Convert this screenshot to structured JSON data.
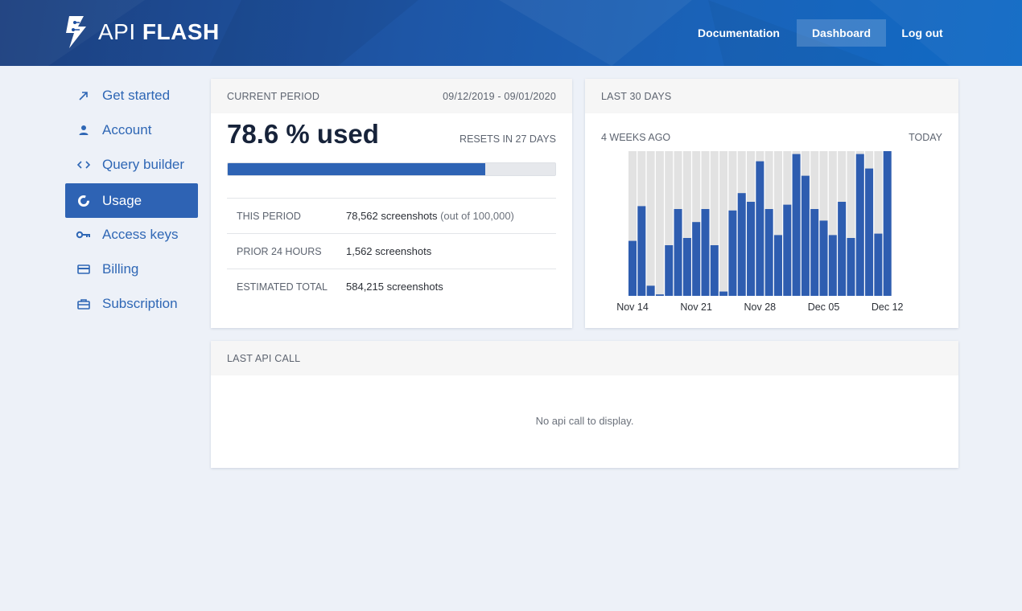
{
  "header": {
    "logo_light": "API",
    "logo_bold": "FLASH",
    "nav": [
      {
        "label": "Documentation"
      },
      {
        "label": "Dashboard"
      },
      {
        "label": "Log out"
      }
    ]
  },
  "sidebar": {
    "items": [
      {
        "label": "Get started",
        "icon": "arrow-up-right-icon"
      },
      {
        "label": "Account",
        "icon": "user-icon"
      },
      {
        "label": "Query builder",
        "icon": "code-icon"
      },
      {
        "label": "Usage",
        "icon": "donut-chart-icon",
        "active": true
      },
      {
        "label": "Access keys",
        "icon": "key-icon"
      },
      {
        "label": "Billing",
        "icon": "credit-card-icon"
      },
      {
        "label": "Subscription",
        "icon": "briefcase-icon"
      }
    ]
  },
  "current_period": {
    "title": "CURRENT PERIOD",
    "range": "09/12/2019 - 09/01/2020",
    "used_text": "78.6 % used",
    "used_fraction": 0.786,
    "resets": "RESETS IN 27 DAYS",
    "rows": [
      {
        "label": "THIS PERIOD",
        "value": "78,562 screenshots",
        "note": "(out of 100,000)"
      },
      {
        "label": "PRIOR 24 HOURS",
        "value": "1,562 screenshots",
        "note": ""
      },
      {
        "label": "ESTIMATED TOTAL",
        "value": "584,215 screenshots",
        "note": ""
      }
    ]
  },
  "last30": {
    "title": "LAST 30 DAYS",
    "left_caption": "4 WEEKS AGO",
    "right_caption": "TODAY"
  },
  "chart_data": {
    "type": "bar",
    "bar_color": "#2e5db0",
    "track_color": "#e2e2e2",
    "x_tick_labels": [
      "Nov 14",
      "Nov 21",
      "Nov 28",
      "Dec 05",
      "Dec 12"
    ],
    "values": [
      38,
      62,
      7,
      1,
      35,
      60,
      40,
      51,
      60,
      35,
      3,
      59,
      71,
      65,
      93,
      60,
      42,
      63,
      98,
      83,
      60,
      52,
      42,
      65,
      40,
      98,
      88,
      43,
      100
    ],
    "ylim": [
      0,
      100
    ]
  },
  "last_api_call": {
    "title": "LAST API CALL",
    "empty_message": "No api call to display."
  },
  "colors": {
    "accent": "#2e63b4",
    "background": "#edf1f8"
  }
}
